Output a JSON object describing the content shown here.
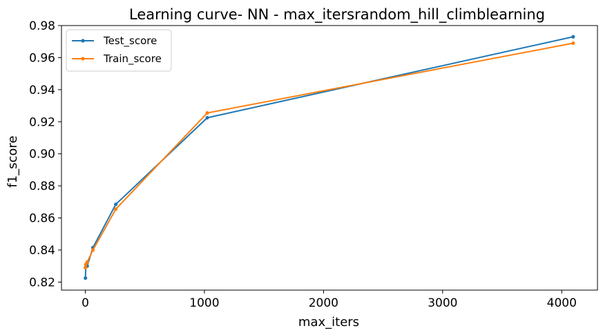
{
  "chart_data": {
    "type": "line",
    "title": "Learning curve- NN - max_itersrandom_hill_climblearning",
    "xlabel": "max_iters",
    "ylabel": "f1_score",
    "xlim": [
      -200,
      4300
    ],
    "ylim": [
      0.815,
      0.98
    ],
    "xticks": [
      0,
      1000,
      2000,
      3000,
      4000
    ],
    "yticks": [
      0.82,
      0.84,
      0.86,
      0.88,
      0.9,
      0.92,
      0.94,
      0.96,
      0.98
    ],
    "xtick_labels": [
      "0",
      "1000",
      "2000",
      "3000",
      "4000"
    ],
    "ytick_labels": [
      "0.82",
      "0.84",
      "0.86",
      "0.88",
      "0.90",
      "0.92",
      "0.94",
      "0.96",
      "0.98"
    ],
    "grid": false,
    "legend_position": "top-left",
    "x": [
      1,
      4,
      16,
      64,
      256,
      1024,
      4096
    ],
    "series": [
      {
        "name": "Test_score",
        "color": "#1f77b4",
        "values": [
          0.8225,
          0.8295,
          0.83,
          0.8415,
          0.8685,
          0.9225,
          0.973
        ]
      },
      {
        "name": "Train_score",
        "color": "#ff7f0e",
        "values": [
          0.829,
          0.831,
          0.8325,
          0.84,
          0.8655,
          0.9255,
          0.969
        ]
      }
    ]
  }
}
